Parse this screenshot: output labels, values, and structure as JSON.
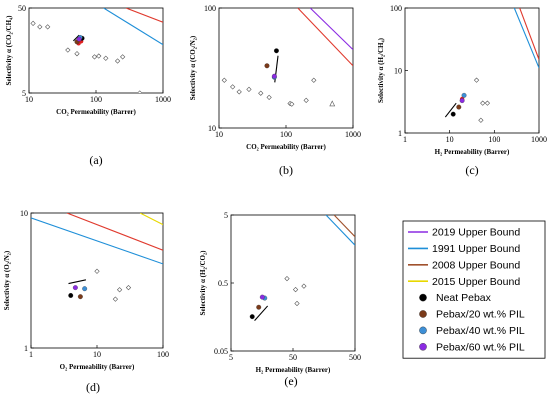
{
  "chart_data": [
    {
      "panel_label": "(a)",
      "type": "scatter",
      "xlabel": "CO₂ Permeability (Barrer)",
      "ylabel": "Selectivity α (CO₂/CH₄)",
      "x_scale": "log",
      "y_scale": "log",
      "xlim": [
        10,
        1000
      ],
      "ylim": [
        5,
        50
      ],
      "xticks": [
        10,
        100,
        1000
      ],
      "xtick_labels": [
        "10",
        "100",
        "1000"
      ],
      "yticks": [
        5,
        50
      ],
      "ytick_labels": [
        "5",
        "50"
      ],
      "reference_points": [
        [
          11.5,
          33
        ],
        [
          14.5,
          30
        ],
        [
          19,
          30
        ],
        [
          38,
          16
        ],
        [
          52,
          14.5
        ],
        [
          95,
          13.3
        ],
        [
          110,
          13.6
        ],
        [
          140,
          12.8
        ],
        [
          210,
          11.9
        ],
        [
          250,
          13.3
        ],
        [
          450,
          5
        ]
      ],
      "series": [
        {
          "name": "Neat Pebax",
          "color": "#000000",
          "points": [
            [
              62,
              22
            ]
          ]
        },
        {
          "name": "Pebax/20 wt.% PIL",
          "color": "#7a3a1a",
          "points": [
            [
              52,
              20
            ]
          ]
        },
        {
          "name": "Pebax/40 wt.% PIL",
          "color": "#3d8fd6",
          "points": [
            [
              58,
              22.5
            ]
          ]
        },
        {
          "name": "Pebax/60 wt.% PIL",
          "color": "#8b2be2",
          "points": [
            [
              56,
              21.5
            ]
          ]
        }
      ],
      "red_points": [
        [
          55,
          19.2
        ],
        [
          60,
          20.3
        ]
      ],
      "trend_arrow": [
        [
          46,
          20.5
        ],
        [
          56,
          24
        ]
      ],
      "upper_bounds": [
        {
          "name": "1991 Upper Bound",
          "color": "#1f8fd8",
          "points": [
            [
              130,
              50
            ],
            [
              1000,
              18.5
            ]
          ]
        },
        {
          "name": "2008 Upper Bound",
          "color": "#e03a2e",
          "points": [
            [
              280,
              50
            ],
            [
              1000,
              34
            ]
          ]
        }
      ]
    },
    {
      "panel_label": "(b)",
      "type": "scatter",
      "xlabel": "CO₂ Permeability (Barrer)",
      "ylabel": "Selectivity α (CO₂/N₂)",
      "x_scale": "log",
      "y_scale": "log",
      "xlim": [
        10,
        1000
      ],
      "ylim": [
        10,
        100
      ],
      "xticks": [
        10,
        100,
        1000
      ],
      "xtick_labels": [
        "10",
        "100",
        "1000"
      ],
      "yticks": [
        10,
        100
      ],
      "ytick_labels": [
        "10",
        "100"
      ],
      "reference_points": [
        [
          12,
          25
        ],
        [
          16,
          22
        ],
        [
          20,
          20
        ],
        [
          28,
          21
        ],
        [
          42,
          19.5
        ],
        [
          56,
          18
        ],
        [
          115,
          16
        ],
        [
          122,
          15.8
        ],
        [
          200,
          17
        ],
        [
          260,
          25
        ]
      ],
      "triangle_points": [
        [
          490,
          16
        ]
      ],
      "series": [
        {
          "name": "Neat Pebax",
          "color": "#000000",
          "points": [
            [
              72,
              44
            ]
          ]
        },
        {
          "name": "Pebax/20 wt.% PIL",
          "color": "#7a3a1a",
          "points": [
            [
              52,
              33
            ]
          ]
        },
        {
          "name": "Pebax/40 wt.% PIL",
          "color": "#3d8fd6",
          "points": [
            [
              67,
              26.5
            ]
          ]
        },
        {
          "name": "Pebax/60 wt.% PIL",
          "color": "#8b2be2",
          "points": [
            [
              67,
              27
            ]
          ]
        }
      ],
      "red_points": [
        [
          52,
          33
        ]
      ],
      "trend_arrow": [
        [
          76,
          40
        ],
        [
          68,
          24
        ]
      ],
      "upper_bounds": [
        {
          "name": "2019 Upper Bound",
          "color": "#8b2be2",
          "points": [
            [
              230,
              100
            ],
            [
              1000,
              45
            ]
          ]
        },
        {
          "name": "2008 Upper Bound",
          "color": "#e03a2e",
          "points": [
            [
              150,
              100
            ],
            [
              1000,
              33
            ]
          ]
        }
      ]
    },
    {
      "panel_label": "(c)",
      "type": "scatter",
      "xlabel": "H₂ Permeability (Barrer)",
      "ylabel": "Selectivity α (H₂/CH₄)",
      "x_scale": "log",
      "y_scale": "log",
      "xlim": [
        1,
        1000
      ],
      "ylim": [
        1,
        100
      ],
      "xticks": [
        1,
        10,
        100,
        1000
      ],
      "xtick_labels": [
        "1",
        "10",
        "100",
        "1000"
      ],
      "yticks": [
        1,
        10,
        100
      ],
      "ytick_labels": [
        "1",
        "10",
        "100"
      ],
      "reference_points": [
        [
          40,
          7
        ],
        [
          55,
          3
        ],
        [
          70,
          3
        ],
        [
          50,
          1.6
        ]
      ],
      "series": [
        {
          "name": "Neat Pebax",
          "color": "#000000",
          "points": [
            [
              12,
              2
            ]
          ]
        },
        {
          "name": "Pebax/20 wt.% PIL",
          "color": "#7a3a1a",
          "points": [
            [
              16,
              2.6
            ]
          ]
        },
        {
          "name": "Pebax/40 wt.% PIL",
          "color": "#3d8fd6",
          "points": [
            [
              21,
              4
            ]
          ]
        },
        {
          "name": "Pebax/60 wt.% PIL",
          "color": "#8b2be2",
          "points": [
            [
              19,
              3.3
            ]
          ]
        }
      ],
      "red_points": [
        [
          19,
          3.5
        ]
      ],
      "trend_arrow": [
        [
          8,
          1.8
        ],
        [
          14,
          3
        ]
      ],
      "upper_bounds": [
        {
          "name": "1991 Upper Bound",
          "color": "#1f8fd8",
          "points": [
            [
              280,
              100
            ],
            [
              1000,
              11
            ]
          ]
        },
        {
          "name": "2008 Upper Bound",
          "color": "#e03a2e",
          "points": [
            [
              370,
              100
            ],
            [
              1000,
              15
            ]
          ]
        }
      ]
    },
    {
      "panel_label": "(d)",
      "type": "scatter",
      "xlabel": "O₂ Permeability (Barrer)",
      "ylabel": "Selectivity α (O₂/N₂)",
      "x_scale": "log",
      "y_scale": "log",
      "xlim": [
        1,
        100
      ],
      "ylim": [
        1,
        10
      ],
      "xticks": [
        1,
        10,
        100
      ],
      "xtick_labels": [
        "1",
        "10",
        "100"
      ],
      "yticks": [
        1,
        10
      ],
      "ytick_labels": [
        "1",
        "10"
      ],
      "reference_points": [
        [
          10,
          3.7
        ],
        [
          19,
          2.3
        ],
        [
          22,
          2.7
        ],
        [
          30,
          2.8
        ]
      ],
      "series": [
        {
          "name": "Neat Pebax",
          "color": "#000000",
          "points": [
            [
              4,
              2.45
            ]
          ]
        },
        {
          "name": "Pebax/20 wt.% PIL",
          "color": "#7a3a1a",
          "points": [
            [
              5.6,
              2.4
            ]
          ]
        },
        {
          "name": "Pebax/40 wt.% PIL",
          "color": "#3d8fd6",
          "points": [
            [
              6.5,
              2.75
            ]
          ]
        },
        {
          "name": "Pebax/60 wt.% PIL",
          "color": "#8b2be2",
          "points": [
            [
              4.7,
              2.8
            ]
          ]
        }
      ],
      "red_points": [],
      "trend_arrow": [
        [
          3.7,
          3
        ],
        [
          6.8,
          3.2
        ]
      ],
      "upper_bounds": [
        {
          "name": "1991 Upper Bound",
          "color": "#1f8fd8",
          "points": [
            [
              1,
              9.2
            ],
            [
              100,
              4.2
            ]
          ]
        },
        {
          "name": "2008 Upper Bound",
          "color": "#e03a2e",
          "points": [
            [
              3.5,
              10
            ],
            [
              100,
              5.3
            ]
          ]
        },
        {
          "name": "2015 Upper Bound",
          "color": "#e8d800",
          "points": [
            [
              45,
              10
            ],
            [
              100,
              8.2
            ]
          ]
        }
      ]
    },
    {
      "panel_label": "(e)",
      "type": "scatter",
      "xlabel": "H₂ Permeability (Barrer)",
      "ylabel": "Selectivity α (H₂/CO₂)",
      "x_scale": "log",
      "y_scale": "log",
      "xlim": [
        5,
        500
      ],
      "ylim": [
        0.05,
        5
      ],
      "xticks": [
        5,
        50,
        500
      ],
      "xtick_labels": [
        "5",
        "50",
        "500"
      ],
      "yticks": [
        0.05,
        0.5,
        5
      ],
      "ytick_labels": [
        "0.05",
        "0.5",
        "5"
      ],
      "reference_points": [
        [
          40,
          0.58
        ],
        [
          55,
          0.4
        ],
        [
          75,
          0.45
        ],
        [
          58,
          0.25
        ]
      ],
      "series": [
        {
          "name": "Neat Pebax",
          "color": "#000000",
          "points": [
            [
              11,
              0.16
            ]
          ]
        },
        {
          "name": "Pebax/20 wt.% PIL",
          "color": "#7a3a1a",
          "points": [
            [
              14,
              0.22
            ]
          ]
        },
        {
          "name": "Pebax/40 wt.% PIL",
          "color": "#3d8fd6",
          "points": [
            [
              17.5,
              0.3
            ]
          ]
        },
        {
          "name": "Pebax/60 wt.% PIL",
          "color": "#8b2be2",
          "points": [
            [
              16,
              0.31
            ]
          ]
        }
      ],
      "red_points": [],
      "trend_arrow": [
        [
          12,
          0.14
        ],
        [
          19.5,
          0.23
        ]
      ],
      "upper_bounds": [
        {
          "name": "1991 Upper Bound",
          "color": "#1f8fd8",
          "points": [
            [
              170,
              5
            ],
            [
              500,
              1.8
            ]
          ]
        },
        {
          "name": "2008 Upper Bound",
          "color": "#a0522d",
          "points": [
            [
              230,
              5
            ],
            [
              500,
              2.4
            ]
          ]
        }
      ]
    }
  ],
  "legend": {
    "placement": "right",
    "items": [
      {
        "label": "2019 Upper Bound",
        "kind": "line",
        "color": "#8b2be2"
      },
      {
        "label": "1991 Upper Bound",
        "kind": "line",
        "color": "#1f8fd8"
      },
      {
        "label": "2008 Upper Bound",
        "kind": "line",
        "color": "#a0522d"
      },
      {
        "label": "2015 Upper Bound",
        "kind": "line",
        "color": "#e8d800"
      },
      {
        "label": "Neat Pebax",
        "kind": "marker",
        "color": "#000000"
      },
      {
        "label": "Pebax/20 wt.% PIL",
        "kind": "marker",
        "color": "#7a3a1a"
      },
      {
        "label": "Pebax/40 wt.% PIL",
        "kind": "marker",
        "color": "#3d8fd6"
      },
      {
        "label": "Pebax/60 wt.% PIL",
        "kind": "marker",
        "color": "#8b2be2"
      }
    ]
  }
}
